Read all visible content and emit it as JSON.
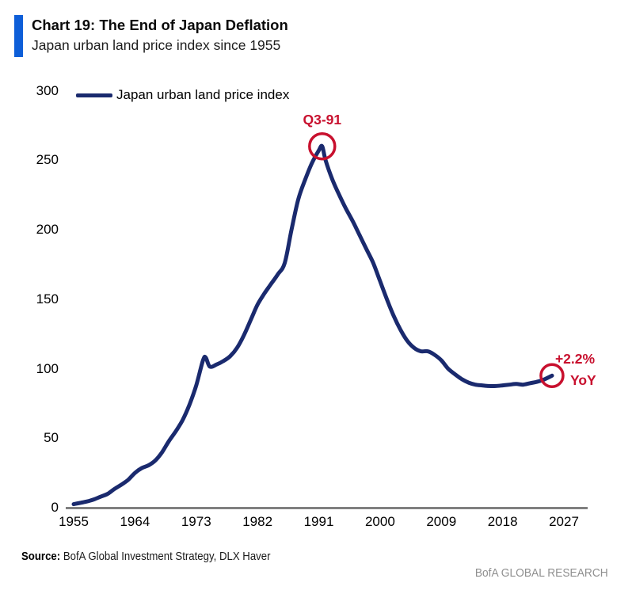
{
  "header": {
    "title": "Chart 19: The End of Japan Deflation",
    "subtitle": "Japan urban land price index since 1955"
  },
  "colors": {
    "line": "#1a2a6e",
    "accent_red": "#c8102e",
    "accent_blue": "#0d5ed8",
    "axis_gray": "#808080",
    "brand_gray": "#909090"
  },
  "chart_data": {
    "type": "line",
    "title": "Chart 19: The End of Japan Deflation",
    "subtitle": "Japan urban land price index since 1955",
    "legend": "Japan urban land price index",
    "xlim": [
      1955,
      2027
    ],
    "ylim": [
      0,
      300
    ],
    "x_ticks": [
      "1955",
      "1964",
      "1973",
      "1982",
      "1991",
      "2000",
      "2009",
      "2018",
      "2027"
    ],
    "y_ticks": [
      "0",
      "50",
      "100",
      "150",
      "200",
      "250",
      "300"
    ],
    "grid": false,
    "legend_position": "top-left",
    "series": [
      {
        "name": "Japan urban land price index",
        "color": "#1a2a6e",
        "points": [
          [
            1955,
            2.5
          ],
          [
            1956,
            3.5
          ],
          [
            1957,
            4.5
          ],
          [
            1958,
            6
          ],
          [
            1959,
            8
          ],
          [
            1960,
            10
          ],
          [
            1961,
            13.5
          ],
          [
            1962,
            16.5
          ],
          [
            1963,
            20
          ],
          [
            1964,
            25
          ],
          [
            1965,
            28.5
          ],
          [
            1966,
            30.5
          ],
          [
            1967,
            34
          ],
          [
            1968,
            40
          ],
          [
            1969,
            48
          ],
          [
            1970,
            55
          ],
          [
            1971,
            63
          ],
          [
            1972,
            74
          ],
          [
            1973,
            88
          ],
          [
            1974,
            106
          ],
          [
            1974.4,
            108
          ],
          [
            1975,
            101.5
          ],
          [
            1976,
            103
          ],
          [
            1977,
            105.5
          ],
          [
            1978,
            109
          ],
          [
            1979,
            115
          ],
          [
            1980,
            124
          ],
          [
            1981,
            135
          ],
          [
            1982,
            146
          ],
          [
            1983,
            154
          ],
          [
            1984,
            161
          ],
          [
            1985,
            168
          ],
          [
            1986,
            176
          ],
          [
            1987,
            200
          ],
          [
            1988,
            222
          ],
          [
            1989,
            236
          ],
          [
            1990,
            248
          ],
          [
            1991,
            257
          ],
          [
            1991.5,
            260
          ],
          [
            1992,
            250
          ],
          [
            1993,
            236
          ],
          [
            1994,
            225
          ],
          [
            1995,
            215
          ],
          [
            1996,
            206
          ],
          [
            1997,
            196
          ],
          [
            1998,
            186
          ],
          [
            1999,
            176
          ],
          [
            2000,
            163
          ],
          [
            2001,
            150
          ],
          [
            2002,
            138
          ],
          [
            2003,
            128
          ],
          [
            2004,
            120
          ],
          [
            2005,
            115
          ],
          [
            2006,
            112.5
          ],
          [
            2007,
            112.5
          ],
          [
            2008,
            110
          ],
          [
            2009,
            106
          ],
          [
            2010,
            100
          ],
          [
            2011,
            96
          ],
          [
            2012,
            92.5
          ],
          [
            2013,
            90
          ],
          [
            2014,
            88.5
          ],
          [
            2015,
            88
          ],
          [
            2016,
            87.5
          ],
          [
            2017,
            87.5
          ],
          [
            2018,
            88
          ],
          [
            2019,
            88.5
          ],
          [
            2020,
            89
          ],
          [
            2021,
            88.5
          ],
          [
            2022,
            89.5
          ],
          [
            2023,
            90.5
          ],
          [
            2024,
            92
          ],
          [
            2025.25,
            95
          ]
        ]
      }
    ],
    "annotations": [
      {
        "id": "peak",
        "lines": [
          "Q3-91"
        ],
        "year": 1991.5,
        "value": 260,
        "circled": true
      },
      {
        "id": "end",
        "lines": [
          "+2.2%",
          "YoY"
        ],
        "year": 2025.25,
        "value": 95,
        "circled": true
      }
    ]
  },
  "footer": {
    "source_label": "Source:",
    "source_text": " BofA Global Investment Strategy, DLX Haver",
    "brand": "BofA GLOBAL RESEARCH"
  }
}
